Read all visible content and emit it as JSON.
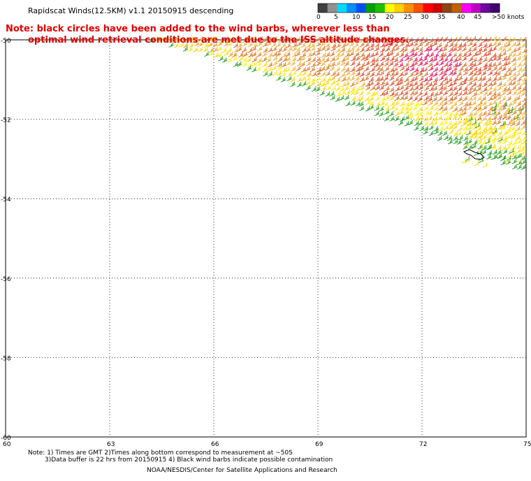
{
  "title": "Rapidscat Winds(12.5KM) v1.1 20150915 descending",
  "note_line1": "Note: black circles have been added to the wind barbs, wherever less than",
  "note_line2": "optimal wind retrieval conditions are met due to the ISS altitude changes.",
  "colorbar": {
    "labels": [
      "0",
      "5",
      "10",
      "15",
      "20",
      "25",
      "30",
      "35",
      "40",
      "45",
      ">50 knots"
    ],
    "colors": [
      "#404040",
      "#909090",
      "#00d8ff",
      "#0090ff",
      "#0050ff",
      "#00a000",
      "#20c000",
      "#ffff00",
      "#ffd000",
      "#ff9000",
      "#ff5000",
      "#ff0000",
      "#d00000",
      "#8b4513",
      "#c06000",
      "#ff00ff",
      "#c000c0",
      "#7000a0",
      "#400070"
    ]
  },
  "axes": {
    "lat_labels": [
      "-50",
      "-52",
      "-54",
      "-56",
      "-58",
      "-60"
    ],
    "lon_labels": [
      "60",
      "63",
      "66",
      "69",
      "72",
      "75"
    ]
  },
  "footer": {
    "line1": "Note: 1) Times are GMT 2)Times along bottom correspond to measurement at ~50S",
    "line2": "3)Data buffer is 22 hrs from 20150915 4) Black wind barbs indicate possible contamination",
    "line3": "NOAA/NESDIS/Center for Satellite Applications and Research"
  }
}
